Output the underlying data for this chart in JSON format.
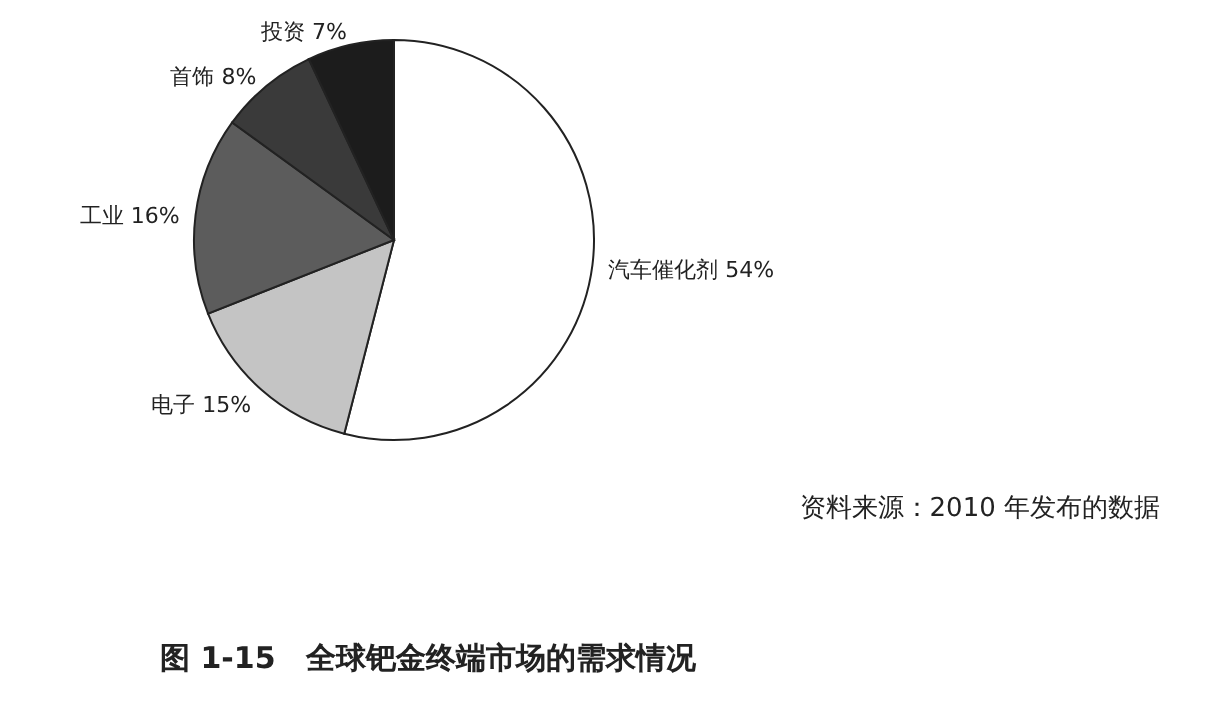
{
  "chart_data": {
    "type": "pie",
    "title": "图 1-15　全球钯金终端市场的需求情况",
    "categories": [
      "汽车催化剂",
      "电子",
      "工业",
      "首饰",
      "投资"
    ],
    "values": [
      54,
      15,
      16,
      8,
      7
    ],
    "value_labels": [
      "54%",
      "15%",
      "16%",
      "8%",
      "7%"
    ],
    "colors": [
      "#ffffff",
      "#c4c4c4",
      "#5c5c5c",
      "#3a3a3a",
      "#1c1c1c"
    ],
    "annotations": [
      "资料来源：2010 年发布的数据"
    ]
  }
}
